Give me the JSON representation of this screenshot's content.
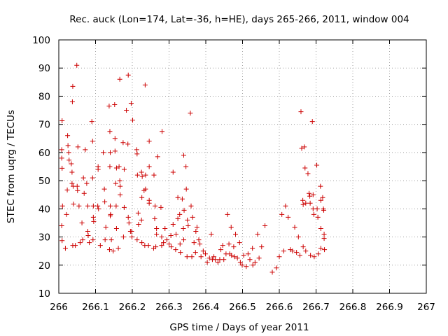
{
  "chart_data": {
    "type": "scatter",
    "title": "Rec. auck (Lon=174, Lat=-36, h=HE), days 265-266, 2011, window 004",
    "xlabel": "GPS time / Days of year 2011",
    "ylabel": "STEC from uqrg / TECUs",
    "xlim": [
      266,
      267
    ],
    "ylim": [
      10,
      100
    ],
    "xticks": [
      "266",
      "266.1",
      "266.2",
      "266.3",
      "266.4",
      "266.5",
      "266.6",
      "266.7",
      "266.8",
      "266.9",
      "267"
    ],
    "yticks": [
      "10",
      "20",
      "30",
      "40",
      "50",
      "60",
      "70",
      "80",
      "90",
      "100"
    ],
    "grid": true,
    "marker": "+",
    "marker_color": "#cc0000",
    "series": [
      {
        "points": [
          [
            266.009,
            71.3
          ],
          [
            266.008,
            61.0
          ],
          [
            266.008,
            58.0
          ],
          [
            266.009,
            54.4
          ],
          [
            266.01,
            41.0
          ],
          [
            266.008,
            34.0
          ],
          [
            266.009,
            28.7
          ],
          [
            266.018,
            26.0
          ],
          [
            266.021,
            38.0
          ],
          [
            266.023,
            46.7
          ],
          [
            266.024,
            66.0
          ],
          [
            266.025,
            62.5
          ],
          [
            266.027,
            60.0
          ],
          [
            266.028,
            57.3
          ],
          [
            266.034,
            56.0
          ],
          [
            266.036,
            53.0
          ],
          [
            266.036,
            49.0
          ],
          [
            266.039,
            48.0
          ],
          [
            266.04,
            41.7
          ],
          [
            266.038,
            27.0
          ],
          [
            266.037,
            78.0
          ],
          [
            266.038,
            83.5
          ],
          [
            266.049,
            91.0
          ],
          [
            266.05,
            48.0
          ],
          [
            266.051,
            46.5
          ],
          [
            266.052,
            62.0
          ],
          [
            266.055,
            41.0
          ],
          [
            266.045,
            27.0
          ],
          [
            266.058,
            28.0
          ],
          [
            266.063,
            35.0
          ],
          [
            266.067,
            51.0
          ],
          [
            266.069,
            45.5
          ],
          [
            266.065,
            29.0
          ],
          [
            266.072,
            61.0
          ],
          [
            266.076,
            49.0
          ],
          [
            266.079,
            41.0
          ],
          [
            266.079,
            32.0
          ],
          [
            266.08,
            30.5
          ],
          [
            266.083,
            28.0
          ],
          [
            266.09,
            71.0
          ],
          [
            266.092,
            64.0
          ],
          [
            266.092,
            51.0
          ],
          [
            266.094,
            41.0
          ],
          [
            266.094,
            37.0
          ],
          [
            266.095,
            35.5
          ],
          [
            266.093,
            29.0
          ],
          [
            266.107,
            55.0
          ],
          [
            266.107,
            54.0
          ],
          [
            266.106,
            41.0
          ],
          [
            266.108,
            40.0
          ],
          [
            266.113,
            27.0
          ],
          [
            266.121,
            60.0
          ],
          [
            266.124,
            47.0
          ],
          [
            266.125,
            42.5
          ],
          [
            266.128,
            33.5
          ],
          [
            266.126,
            29.0
          ],
          [
            266.137,
            76.5
          ],
          [
            266.139,
            67.5
          ],
          [
            266.14,
            60.0
          ],
          [
            266.139,
            55.0
          ],
          [
            266.14,
            41.0
          ],
          [
            266.141,
            38.0
          ],
          [
            266.14,
            37.5
          ],
          [
            266.143,
            29.0
          ],
          [
            266.138,
            25.5
          ],
          [
            266.148,
            25.0
          ],
          [
            266.152,
            77.0
          ],
          [
            266.153,
            65.0
          ],
          [
            266.153,
            60.5
          ],
          [
            266.157,
            54.5
          ],
          [
            266.155,
            49.0
          ],
          [
            266.156,
            41.0
          ],
          [
            266.157,
            33.0
          ],
          [
            266.162,
            26.0
          ],
          [
            266.166,
            86.0
          ],
          [
            266.164,
            55.0
          ],
          [
            266.166,
            50.0
          ],
          [
            266.167,
            48.0
          ],
          [
            266.167,
            45.0
          ],
          [
            266.175,
            63.5
          ],
          [
            266.178,
            54.0
          ],
          [
            266.178,
            40.5
          ],
          [
            266.176,
            30.0
          ],
          [
            266.184,
            75.0
          ],
          [
            266.189,
            87.5
          ],
          [
            266.188,
            63.0
          ],
          [
            266.189,
            37.0
          ],
          [
            266.191,
            35.0
          ],
          [
            266.195,
            32.0
          ],
          [
            266.197,
            77.5
          ],
          [
            266.201,
            71.5
          ],
          [
            266.198,
            32.0
          ],
          [
            266.199,
            30.0
          ],
          [
            266.212,
            61.0
          ],
          [
            266.213,
            59.5
          ],
          [
            266.214,
            52.0
          ],
          [
            266.216,
            38.5
          ],
          [
            266.217,
            34.5
          ],
          [
            266.213,
            29.0
          ],
          [
            266.225,
            53.0
          ],
          [
            266.227,
            51.5
          ],
          [
            266.226,
            44.0
          ],
          [
            266.225,
            36.0
          ],
          [
            266.226,
            28.0
          ],
          [
            266.235,
            84.0
          ],
          [
            266.236,
            52.0
          ],
          [
            266.236,
            47.0
          ],
          [
            266.232,
            46.5
          ],
          [
            266.234,
            27.0
          ],
          [
            266.246,
            64.0
          ],
          [
            266.246,
            55.0
          ],
          [
            266.246,
            43.0
          ],
          [
            266.246,
            42.0
          ],
          [
            266.244,
            27.0
          ],
          [
            266.259,
            52.0
          ],
          [
            266.262,
            41.0
          ],
          [
            266.261,
            36.5
          ],
          [
            266.266,
            33.0
          ],
          [
            266.266,
            31.0
          ],
          [
            266.258,
            26.0
          ],
          [
            266.264,
            26.5
          ],
          [
            266.269,
            58.5
          ],
          [
            266.281,
            67.5
          ],
          [
            266.278,
            40.5
          ],
          [
            266.28,
            30.0
          ],
          [
            266.28,
            27.0
          ],
          [
            266.289,
            33.0
          ],
          [
            266.285,
            28.0
          ],
          [
            266.294,
            29.0
          ],
          [
            266.3,
            27.5
          ],
          [
            266.305,
            30.5
          ],
          [
            266.306,
            26.5
          ],
          [
            266.311,
            53.0
          ],
          [
            266.311,
            34.5
          ],
          [
            266.319,
            31.0
          ],
          [
            266.318,
            25.5
          ],
          [
            266.324,
            44.0
          ],
          [
            266.324,
            36.5
          ],
          [
            266.329,
            38.0
          ],
          [
            266.33,
            27.5
          ],
          [
            266.331,
            24.5
          ],
          [
            266.336,
            43.5
          ],
          [
            266.34,
            59.0
          ],
          [
            266.341,
            39.5
          ],
          [
            266.339,
            33.0
          ],
          [
            266.34,
            29.0
          ],
          [
            266.346,
            55.0
          ],
          [
            266.347,
            47.0
          ],
          [
            266.35,
            36.0
          ],
          [
            266.352,
            34.0
          ],
          [
            266.349,
            23.0
          ],
          [
            266.358,
            74.0
          ],
          [
            266.36,
            41.0
          ],
          [
            266.364,
            37.0
          ],
          [
            266.362,
            23.0
          ],
          [
            266.368,
            28.0
          ],
          [
            266.373,
            32.0
          ],
          [
            266.376,
            33.5
          ],
          [
            266.372,
            24.5
          ],
          [
            266.381,
            29.0
          ],
          [
            266.384,
            27.5
          ],
          [
            266.387,
            23.0
          ],
          [
            266.393,
            25.0
          ],
          [
            266.399,
            24.0
          ],
          [
            266.404,
            21.0
          ],
          [
            266.41,
            22.5
          ],
          [
            266.415,
            31.0
          ],
          [
            266.418,
            22.0
          ],
          [
            266.422,
            23.0
          ],
          [
            266.426,
            22.0
          ],
          [
            266.433,
            21.0
          ],
          [
            266.438,
            22.0
          ],
          [
            266.441,
            25.5
          ],
          [
            266.446,
            27.0
          ],
          [
            266.449,
            22.0
          ],
          [
            266.455,
            24.0
          ],
          [
            266.459,
            38.0
          ],
          [
            266.463,
            27.5
          ],
          [
            266.465,
            24.0
          ],
          [
            266.469,
            33.5
          ],
          [
            266.47,
            23.5
          ],
          [
            266.476,
            26.5
          ],
          [
            266.478,
            23.0
          ],
          [
            266.481,
            31.0
          ],
          [
            266.486,
            22.5
          ],
          [
            266.492,
            28.0
          ],
          [
            266.494,
            21.0
          ],
          [
            266.499,
            20.0
          ],
          [
            266.503,
            23.5
          ],
          [
            266.51,
            19.5
          ],
          [
            266.515,
            24.0
          ],
          [
            266.52,
            22.0
          ],
          [
            266.527,
            26.0
          ],
          [
            266.528,
            20.0
          ],
          [
            266.534,
            21.0
          ],
          [
            266.541,
            31.0
          ],
          [
            266.545,
            22.5
          ],
          [
            266.552,
            26.5
          ],
          [
            266.561,
            34.0
          ],
          [
            266.581,
            17.5
          ],
          [
            266.592,
            19.0
          ],
          [
            266.6,
            23.0
          ],
          [
            266.607,
            38.0
          ],
          [
            266.612,
            25.0
          ],
          [
            266.617,
            41.0
          ],
          [
            266.624,
            37.0
          ],
          [
            266.63,
            25.5
          ],
          [
            266.636,
            25.0
          ],
          [
            266.642,
            33.5
          ],
          [
            266.647,
            24.5
          ],
          [
            266.652,
            30.0
          ],
          [
            266.656,
            23.5
          ],
          [
            266.659,
            74.5
          ],
          [
            266.661,
            61.5
          ],
          [
            266.664,
            43.0
          ],
          [
            266.665,
            41.5
          ],
          [
            266.665,
            26.5
          ],
          [
            266.668,
            62.0
          ],
          [
            266.67,
            54.5
          ],
          [
            266.672,
            42.0
          ],
          [
            266.672,
            25.0
          ],
          [
            266.678,
            52.5
          ],
          [
            266.681,
            45.5
          ],
          [
            266.683,
            44.5
          ],
          [
            266.684,
            42.0
          ],
          [
            266.685,
            23.5
          ],
          [
            266.69,
            71.0
          ],
          [
            266.692,
            45.0
          ],
          [
            266.692,
            40.0
          ],
          [
            266.694,
            38.0
          ],
          [
            266.695,
            23.0
          ],
          [
            266.702,
            55.5
          ],
          [
            266.703,
            40.0
          ],
          [
            266.705,
            37.0
          ],
          [
            266.706,
            24.0
          ],
          [
            266.712,
            48.0
          ],
          [
            266.713,
            43.0
          ],
          [
            266.713,
            33.0
          ],
          [
            266.713,
            26.0
          ],
          [
            266.718,
            44.0
          ],
          [
            266.72,
            40.0
          ],
          [
            266.721,
            39.5
          ],
          [
            266.722,
            31.0
          ],
          [
            266.722,
            29.5
          ],
          [
            266.723,
            25.5
          ]
        ]
      }
    ]
  }
}
